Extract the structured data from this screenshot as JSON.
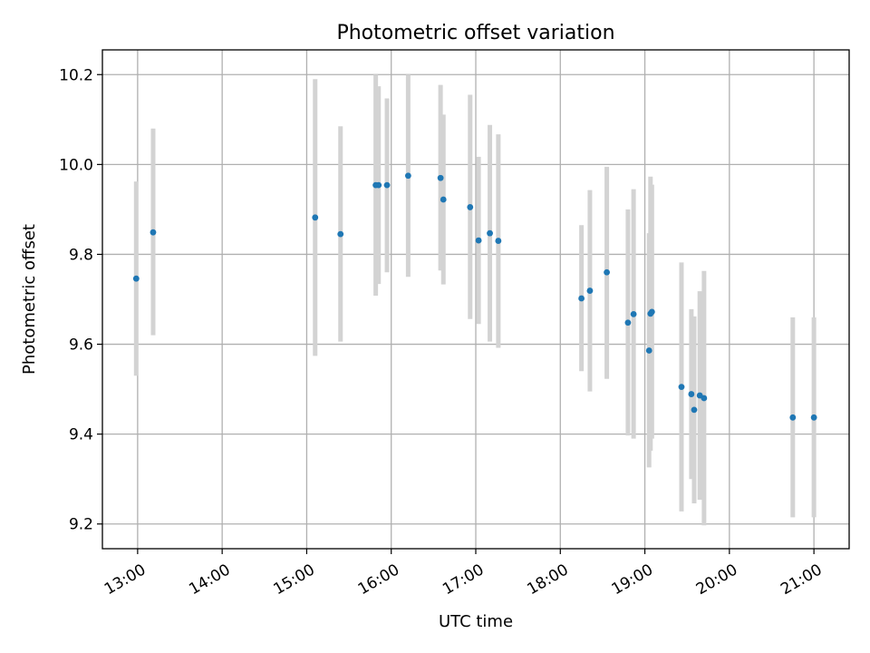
{
  "chart_data": {
    "type": "scatter",
    "title": "Photometric offset variation",
    "xlabel": "UTC time",
    "ylabel": "Photometric offset",
    "x_tick_labels": [
      "13:00",
      "14:00",
      "15:00",
      "16:00",
      "17:00",
      "18:00",
      "19:00",
      "20:00",
      "21:00"
    ],
    "y_tick_labels": [
      "9.2",
      "9.4",
      "9.6",
      "9.8",
      "10.0",
      "10.2"
    ],
    "y_ticks": [
      9.2,
      9.4,
      9.6,
      9.8,
      10.0,
      10.2
    ],
    "xlim": [
      "12:35",
      "21:25"
    ],
    "ylim": [
      9.145,
      10.255
    ],
    "grid": true,
    "colors": {
      "points": "#1f77b4",
      "errorbars": "#d3d3d3"
    },
    "series": [
      {
        "points": [
          {
            "x": "12:59",
            "y": 9.746,
            "low": 9.53,
            "high": 9.962
          },
          {
            "x": "13:11",
            "y": 9.849,
            "low": 9.62,
            "high": 10.08
          },
          {
            "x": "15:06",
            "y": 9.882,
            "low": 9.574,
            "high": 10.19
          },
          {
            "x": "15:24",
            "y": 9.845,
            "low": 9.606,
            "high": 10.085
          },
          {
            "x": "15:49",
            "y": 9.954,
            "low": 9.708,
            "high": 10.2
          },
          {
            "x": "15:51",
            "y": 9.954,
            "low": 9.734,
            "high": 10.174
          },
          {
            "x": "15:57",
            "y": 9.954,
            "low": 9.76,
            "high": 10.147
          },
          {
            "x": "16:12",
            "y": 9.975,
            "low": 9.75,
            "high": 10.2
          },
          {
            "x": "16:35",
            "y": 9.97,
            "low": 9.764,
            "high": 10.177
          },
          {
            "x": "16:37",
            "y": 9.922,
            "low": 9.733,
            "high": 10.111
          },
          {
            "x": "16:56",
            "y": 9.905,
            "low": 9.656,
            "high": 10.155
          },
          {
            "x": "17:02",
            "y": 9.831,
            "low": 9.645,
            "high": 10.017
          },
          {
            "x": "17:10",
            "y": 9.847,
            "low": 9.606,
            "high": 10.088
          },
          {
            "x": "17:16",
            "y": 9.83,
            "low": 9.592,
            "high": 10.067
          },
          {
            "x": "18:15",
            "y": 9.702,
            "low": 9.54,
            "high": 9.865
          },
          {
            "x": "18:21",
            "y": 9.719,
            "low": 9.495,
            "high": 9.943
          },
          {
            "x": "18:33",
            "y": 9.76,
            "low": 9.523,
            "high": 9.995
          },
          {
            "x": "18:48",
            "y": 9.648,
            "low": 9.397,
            "high": 9.9
          },
          {
            "x": "18:52",
            "y": 9.667,
            "low": 9.39,
            "high": 9.945
          },
          {
            "x": "19:03",
            "y": 9.586,
            "low": 9.326,
            "high": 9.847
          },
          {
            "x": "19:04",
            "y": 9.668,
            "low": 9.363,
            "high": 9.973
          },
          {
            "x": "19:05",
            "y": 9.672,
            "low": 9.39,
            "high": 9.955
          },
          {
            "x": "19:26",
            "y": 9.505,
            "low": 9.228,
            "high": 9.782
          },
          {
            "x": "19:33",
            "y": 9.489,
            "low": 9.3,
            "high": 9.678
          },
          {
            "x": "19:35",
            "y": 9.454,
            "low": 9.246,
            "high": 9.662
          },
          {
            "x": "19:39",
            "y": 9.486,
            "low": 9.254,
            "high": 9.718
          },
          {
            "x": "19:42",
            "y": 9.48,
            "low": 9.197,
            "high": 9.763
          },
          {
            "x": "20:45",
            "y": 9.437,
            "low": 9.215,
            "high": 9.66
          },
          {
            "x": "21:00",
            "y": 9.437,
            "low": 9.215,
            "high": 9.66
          }
        ]
      }
    ]
  }
}
